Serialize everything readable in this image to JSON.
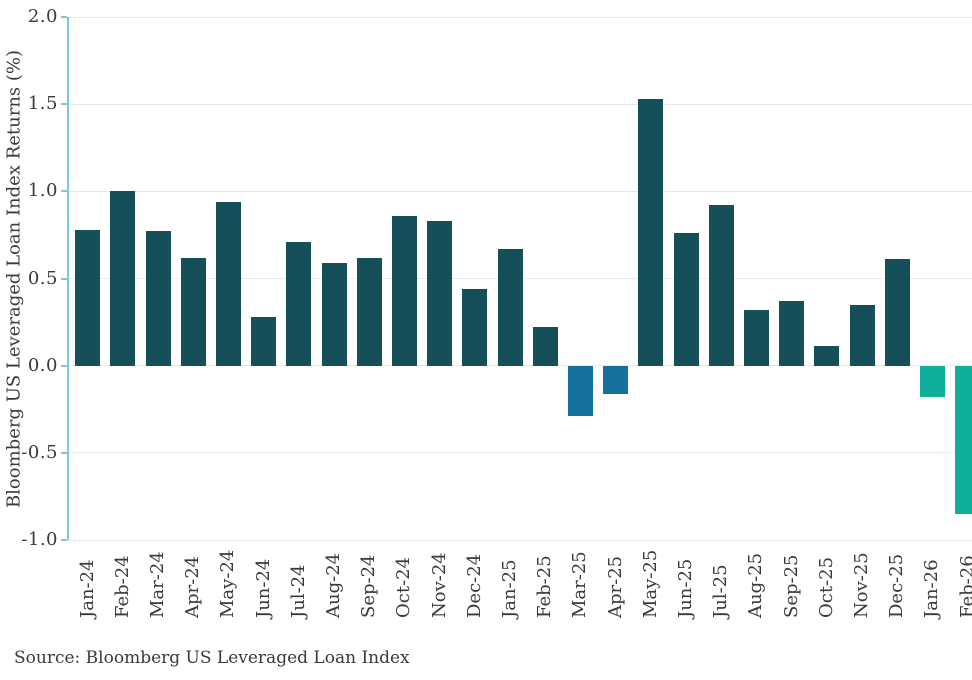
{
  "chart_data": {
    "type": "bar",
    "title": "",
    "xlabel": "",
    "ylabel": "Bloomberg US Leveraged Loan Index Returns (%)",
    "ylim": [
      -1.0,
      2.0
    ],
    "yticks": [
      2.0,
      1.5,
      1.0,
      0.5,
      0.0,
      -0.5,
      -1.0
    ],
    "y_tick_labels": [
      "2.0",
      "1.5",
      "1.0",
      "0.5",
      "0.0",
      "-0.5",
      "-1.0"
    ],
    "grid": true,
    "legend": false,
    "categories": [
      "Jan-24",
      "Feb-24",
      "Mar-24",
      "Apr-24",
      "May-24",
      "Jun-24",
      "Jul-24",
      "Aug-24",
      "Sep-24",
      "Oct-24",
      "Nov-24",
      "Dec-24",
      "Jan-25",
      "Feb-25",
      "Mar-25",
      "Apr-25",
      "May-25",
      "Jun-25",
      "Jul-25",
      "Aug-25",
      "Sep-25",
      "Oct-25",
      "Nov-25",
      "Dec-25",
      "Jan-26",
      "Feb-26"
    ],
    "values": [
      0.78,
      1.0,
      0.77,
      0.62,
      0.94,
      0.28,
      0.71,
      0.59,
      0.62,
      0.86,
      0.83,
      0.44,
      0.67,
      0.22,
      -0.29,
      -0.16,
      1.53,
      0.76,
      0.92,
      0.32,
      0.37,
      0.11,
      0.35,
      0.61,
      -0.18,
      -0.85
    ],
    "bar_colors": [
      "#154f59",
      "#154f59",
      "#154f59",
      "#154f59",
      "#154f59",
      "#154f59",
      "#154f59",
      "#154f59",
      "#154f59",
      "#154f59",
      "#154f59",
      "#154f59",
      "#154f59",
      "#154f59",
      "#16719f",
      "#16719f",
      "#154f59",
      "#154f59",
      "#154f59",
      "#154f59",
      "#154f59",
      "#154f59",
      "#154f59",
      "#154f59",
      "#10ae9c",
      "#10ae9c"
    ]
  },
  "colors": {
    "bar_default": "#154f59",
    "bar_blue": "#16719f",
    "bar_teal": "#10ae9c",
    "axis_spine": "#7cc8d8",
    "gridline": "#e8e8e8",
    "text": "#3a3a3a"
  },
  "footer": {
    "source": "Source: Bloomberg US Leveraged Loan Index"
  }
}
